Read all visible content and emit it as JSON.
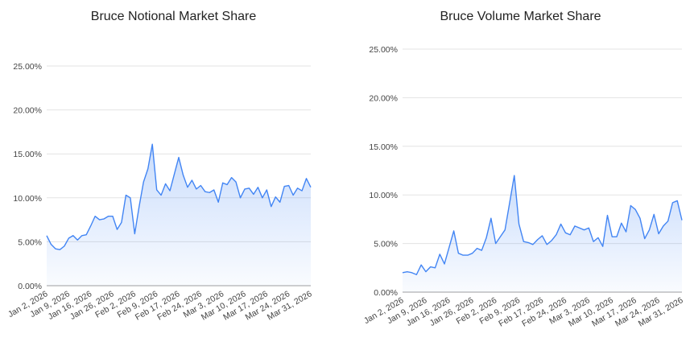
{
  "chart_data": [
    {
      "type": "area",
      "title": "Bruce Notional Market Share",
      "xlabel": "",
      "ylabel": "",
      "ylim": [
        0,
        25
      ],
      "yticks": [
        "0.00%",
        "5.00%",
        "10.00%",
        "15.00%",
        "20.00%",
        "25.00%"
      ],
      "xticks": [
        "Jan 2, 2026",
        "Jan 9, 2026",
        "Jan 16, 2026",
        "Jan 26, 2026",
        "Feb 2, 2026",
        "Feb 9, 2026",
        "Feb 17, 2026",
        "Feb 24, 2026",
        "Mar 3, 2026",
        "Mar 10, 2026",
        "Mar 17, 2026",
        "Mar 24, 2026",
        "Mar 31, 2026"
      ],
      "grid": true,
      "legend": "none",
      "color": "#4285f4",
      "values": [
        5.7,
        4.7,
        4.2,
        4.1,
        4.5,
        5.4,
        5.7,
        5.2,
        5.7,
        5.8,
        6.8,
        7.9,
        7.5,
        7.6,
        7.9,
        7.9,
        6.4,
        7.2,
        10.3,
        10.0,
        5.9,
        9.0,
        11.8,
        13.3,
        16.1,
        10.9,
        10.3,
        11.6,
        10.8,
        12.7,
        14.6,
        12.6,
        11.2,
        12.0,
        11.0,
        11.4,
        10.7,
        10.6,
        10.9,
        9.5,
        11.7,
        11.5,
        12.3,
        11.8,
        10.0,
        11.0,
        11.1,
        10.4,
        11.2,
        10.0,
        10.9,
        9.0,
        10.1,
        9.5,
        11.3,
        11.4,
        10.3,
        11.1,
        10.8,
        12.2,
        11.2
      ]
    },
    {
      "type": "area",
      "title": "Bruce Volume Market Share",
      "xlabel": "",
      "ylabel": "",
      "ylim": [
        0,
        25
      ],
      "yticks": [
        "0.00%",
        "5.00%",
        "10.00%",
        "15.00%",
        "20.00%",
        "25.00%"
      ],
      "xticks": [
        "Jan 2, 2026",
        "Jan 9, 2026",
        "Jan 16, 2026",
        "Jan 26, 2026",
        "Feb 2, 2026",
        "Feb 9, 2026",
        "Feb 17, 2026",
        "Feb 24, 2026",
        "Mar 3, 2026",
        "Mar 10, 2026",
        "Mar 17, 2026",
        "Mar 24, 2026",
        "Mar 31, 2026"
      ],
      "grid": true,
      "legend": "none",
      "color": "#4285f4",
      "values": [
        2.0,
        2.1,
        2.0,
        1.8,
        2.8,
        2.1,
        2.6,
        2.5,
        3.9,
        2.9,
        4.6,
        6.3,
        4.0,
        3.8,
        3.8,
        4.0,
        4.5,
        4.3,
        5.6,
        7.6,
        5.0,
        5.7,
        6.4,
        9.2,
        12.0,
        7.0,
        5.2,
        5.1,
        4.9,
        5.4,
        5.8,
        4.9,
        5.3,
        5.9,
        7.0,
        6.1,
        5.9,
        6.8,
        6.6,
        6.4,
        6.6,
        5.2,
        5.6,
        4.7,
        7.9,
        5.7,
        5.7,
        7.1,
        6.2,
        8.9,
        8.5,
        7.6,
        5.5,
        6.4,
        8.0,
        6.0,
        6.8,
        7.3,
        9.2,
        9.4,
        7.4
      ]
    }
  ]
}
